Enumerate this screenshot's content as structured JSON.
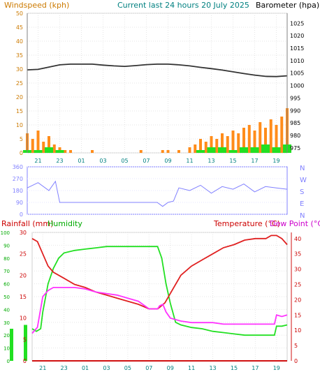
{
  "header": {
    "wind_title": "Windspeed (kph)",
    "period_title": "Current last 24 hours 20 July 2025",
    "baro_title": "Barometer (hpa)"
  },
  "bottom_header": {
    "rain_title": "Rainfall (mm)",
    "humidity_title": "Humidity",
    "temp_title": "Temperature (°C)",
    "dew_title": "Dew Point (°C)"
  },
  "colors": {
    "wind": "#ff8c1a",
    "gust": "#22e022",
    "baro": "#333333",
    "direction": "#8080ff",
    "humidity": "#22e022",
    "dew": "#ff33ff",
    "temp": "#e02020",
    "rain": "#d01010",
    "period_title": "#008080",
    "left_axis_wind": "#cc7a00",
    "left_axis_rain": "#cc0000",
    "left_axis_hum": "#00aa00"
  },
  "chart_data": [
    {
      "type": "line",
      "name": "wind-baro",
      "x_ticks": [
        "21",
        "23",
        "01",
        "03",
        "05",
        "07",
        "09",
        "11",
        "13",
        "15",
        "17",
        "19"
      ],
      "wind_ticks": [
        "0",
        "5",
        "10",
        "15",
        "20",
        "25",
        "30",
        "35",
        "40",
        "45",
        "50"
      ],
      "wind_ylim": [
        0,
        50
      ],
      "baro_ticks": [
        "975",
        "980",
        "985",
        "990",
        "995",
        "1000",
        "1005",
        "1010",
        "1015",
        "1020",
        "1025"
      ],
      "baro_ylim": [
        973,
        1029
      ],
      "barometer": {
        "x": [
          0,
          1,
          2,
          3,
          4,
          5,
          6,
          7,
          8,
          9,
          10,
          11,
          12,
          13,
          14,
          15,
          16,
          17,
          18,
          19,
          20,
          21,
          22,
          23,
          24
        ],
        "values": [
          1006.3,
          1006.5,
          1007.4,
          1008.3,
          1008.6,
          1008.6,
          1008.6,
          1008.2,
          1007.9,
          1007.7,
          1008.0,
          1008.4,
          1008.6,
          1008.6,
          1008.3,
          1007.9,
          1007.3,
          1006.8,
          1006.2,
          1005.5,
          1004.8,
          1004.2,
          1003.7,
          1003.6,
          1003.9
        ]
      },
      "windspeed": {
        "x": [
          0,
          0.5,
          1,
          1.5,
          2,
          2.5,
          3,
          3.5,
          4,
          4.5,
          5,
          5.5,
          6,
          6.5,
          7,
          7.5,
          8,
          8.5,
          9,
          9.5,
          10,
          10.5,
          11,
          11.5,
          12,
          12.5,
          13,
          13.5,
          14,
          14.5,
          15,
          15.5,
          16,
          16.5,
          17,
          17.5,
          18,
          18.5,
          19,
          19.5,
          20,
          20.5,
          21,
          21.5,
          22,
          22.5,
          23,
          23.5,
          24
        ],
        "values": [
          7,
          5,
          8,
          4,
          6,
          3,
          2,
          1,
          1,
          0,
          0,
          0,
          1,
          0,
          0,
          0,
          0,
          0,
          0,
          0,
          0,
          1,
          0,
          0,
          0,
          1,
          1,
          0,
          1,
          0,
          2,
          3,
          5,
          4,
          6,
          5,
          7,
          6,
          8,
          7,
          9,
          10,
          8,
          11,
          9,
          12,
          10,
          13,
          16
        ]
      },
      "gust": {
        "x": [
          0,
          1,
          2,
          3,
          4,
          5,
          6,
          7,
          8,
          9,
          10,
          11,
          12,
          13,
          14,
          15,
          16,
          17,
          18,
          19,
          20,
          21,
          22,
          23,
          24
        ],
        "values": [
          1,
          1,
          2,
          1,
          0,
          0,
          0,
          0,
          0,
          0,
          0,
          0,
          0,
          0,
          0,
          0,
          1,
          2,
          2,
          1,
          2,
          2,
          3,
          2,
          3
        ]
      }
    },
    {
      "type": "scatter",
      "name": "wind-direction",
      "y_ticks": [
        "0",
        "90",
        "180",
        "270",
        "360"
      ],
      "ylim": [
        0,
        360
      ],
      "compass_labels": [
        "N",
        "W",
        "S",
        "E",
        "N"
      ],
      "x": [
        0,
        1,
        2,
        2.6,
        3,
        4,
        5,
        6,
        7,
        8,
        9,
        10,
        11,
        12,
        12.5,
        13,
        13.5,
        14,
        15,
        16,
        17,
        18,
        19,
        20,
        21,
        22,
        23,
        24
      ],
      "values": [
        200,
        240,
        180,
        250,
        90,
        90,
        90,
        90,
        90,
        90,
        90,
        90,
        90,
        90,
        60,
        90,
        100,
        200,
        180,
        220,
        160,
        210,
        190,
        230,
        170,
        210,
        200,
        190
      ]
    },
    {
      "type": "line",
      "name": "temperature-humidity",
      "rain_ticks": [
        "0",
        "5",
        "10",
        "15",
        "20",
        "25",
        "30"
      ],
      "rain_ylim": [
        0,
        30
      ],
      "humidity_ticks": [
        "0",
        "10",
        "20",
        "30",
        "40",
        "50",
        "60",
        "70",
        "80",
        "90",
        "100"
      ],
      "humidity_ylim": [
        0,
        100
      ],
      "temp_ticks": [
        "0",
        "5",
        "10",
        "15",
        "20",
        "25",
        "30",
        "35",
        "40"
      ],
      "temp_ylim": [
        0,
        42
      ],
      "humidity": {
        "x": [
          0,
          0.4,
          0.8,
          1,
          1.5,
          2,
          2.5,
          3,
          4,
          5,
          6,
          7,
          8,
          9,
          10,
          11,
          11.8,
          12.2,
          12.6,
          13,
          13.5,
          14,
          15,
          16,
          17,
          18,
          19,
          20,
          21,
          22,
          22.8,
          23,
          23.5,
          24
        ],
        "values": [
          25,
          23,
          25,
          38,
          60,
          72,
          80,
          84,
          86,
          87,
          88,
          89,
          89,
          89,
          89,
          89,
          89,
          80,
          60,
          45,
          30,
          28,
          26,
          25,
          23,
          22,
          21,
          20,
          20,
          20,
          20,
          27,
          27,
          28
        ]
      },
      "temperature": {
        "x": [
          0,
          0.5,
          1,
          1.5,
          2,
          3,
          4,
          5,
          6,
          7,
          8,
          9,
          10,
          11,
          11.8,
          12,
          12.5,
          13,
          14,
          15,
          16,
          17,
          18,
          19,
          20,
          21,
          22,
          22.5,
          23,
          23.5,
          24
        ],
        "values": [
          40,
          39,
          35,
          31,
          29,
          27,
          25,
          24,
          22.5,
          21.5,
          20.5,
          19.5,
          18.5,
          17,
          17,
          17.5,
          19,
          22,
          28,
          31,
          33,
          35,
          37,
          38,
          39.5,
          40,
          40,
          41,
          41,
          40,
          38
        ]
      },
      "dew_point": {
        "x": [
          0,
          0.5,
          1,
          1.5,
          2,
          3,
          4,
          5,
          6,
          7,
          8,
          9,
          10,
          11,
          11.8,
          12,
          12.3,
          12.6,
          13,
          14,
          15,
          16,
          17,
          18,
          19,
          20,
          21,
          22,
          22.8,
          23,
          23.5,
          24
        ],
        "values": [
          9,
          11,
          21,
          23,
          24,
          24,
          24,
          23.5,
          22.5,
          22,
          21.5,
          20.5,
          19.5,
          17,
          17,
          18,
          18.5,
          16,
          14,
          13,
          12.5,
          12.5,
          12.5,
          12,
          12,
          12,
          12,
          12,
          12,
          15,
          14.5,
          15
        ]
      },
      "rainfall": {
        "x": [
          0,
          24
        ],
        "values": [
          0,
          0
        ]
      }
    }
  ]
}
